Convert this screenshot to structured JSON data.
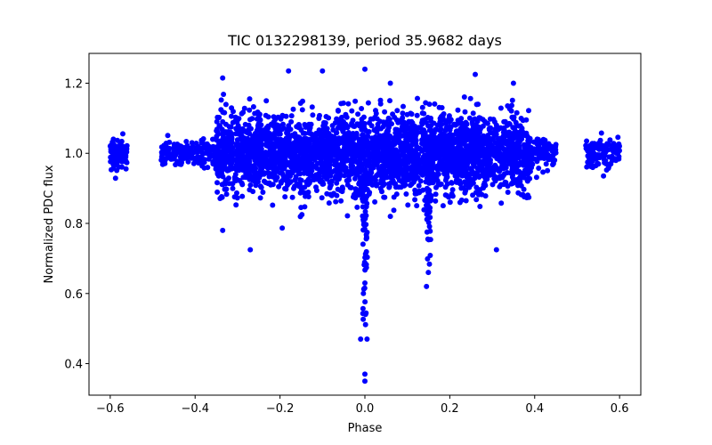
{
  "chart_data": {
    "type": "scatter",
    "title": "TIC 0132298139, period 35.9682 days",
    "xlabel": "Phase",
    "ylabel": "Normalized PDC flux",
    "xlim": [
      -0.65,
      0.65
    ],
    "ylim": [
      0.31,
      1.285
    ],
    "xticks": [
      -0.6,
      -0.4,
      -0.2,
      0.0,
      0.2,
      0.4,
      0.6
    ],
    "xtick_labels": [
      "−0.6",
      "−0.4",
      "−0.2",
      "0.0",
      "0.2",
      "0.4",
      "0.6"
    ],
    "yticks": [
      0.4,
      0.6,
      0.8,
      1.0,
      1.2
    ],
    "ytick_labels": [
      "0.4",
      "0.6",
      "0.8",
      "1.0",
      "1.2"
    ],
    "grid": false,
    "marker_color": "#0000ff",
    "marker": "filled circle",
    "series": [
      {
        "name": "PDC flux",
        "clusters": [
          {
            "x_range": [
              -0.6,
              -0.56
            ],
            "y_mean": 1.0,
            "y_spread": 0.022,
            "n": 90
          },
          {
            "x_range": [
              -0.48,
              -0.35
            ],
            "y_mean": 1.0,
            "y_spread": 0.02,
            "n": 180
          },
          {
            "x_range": [
              -0.35,
              0.39
            ],
            "y_mean": 1.0,
            "y_spread": 0.055,
            "n": 3200
          },
          {
            "x_range": [
              0.38,
              0.45
            ],
            "y_mean": 1.0,
            "y_spread": 0.022,
            "n": 120
          },
          {
            "x_range": [
              0.52,
              0.6
            ],
            "y_mean": 1.0,
            "y_spread": 0.022,
            "n": 120
          }
        ],
        "points": [
          [
            -0.27,
            0.725
          ],
          [
            0.31,
            0.725
          ],
          [
            -0.335,
            0.78
          ],
          [
            0.0,
            0.35
          ],
          [
            0.0,
            0.37
          ],
          [
            -0.01,
            0.47
          ],
          [
            0.005,
            0.47
          ],
          [
            0.145,
            0.62
          ],
          [
            0.0,
            1.24
          ],
          [
            -0.1,
            1.235
          ],
          [
            -0.18,
            1.235
          ],
          [
            0.26,
            1.225
          ],
          [
            -0.335,
            1.215
          ],
          [
            0.35,
            1.2
          ],
          [
            0.06,
            1.2
          ]
        ],
        "dips": [
          {
            "x_center": 0.0,
            "x_width": 0.012,
            "y_min": 0.5,
            "n": 70
          },
          {
            "x_center": 0.15,
            "x_width": 0.012,
            "y_min": 0.64,
            "n": 55
          }
        ]
      }
    ]
  }
}
